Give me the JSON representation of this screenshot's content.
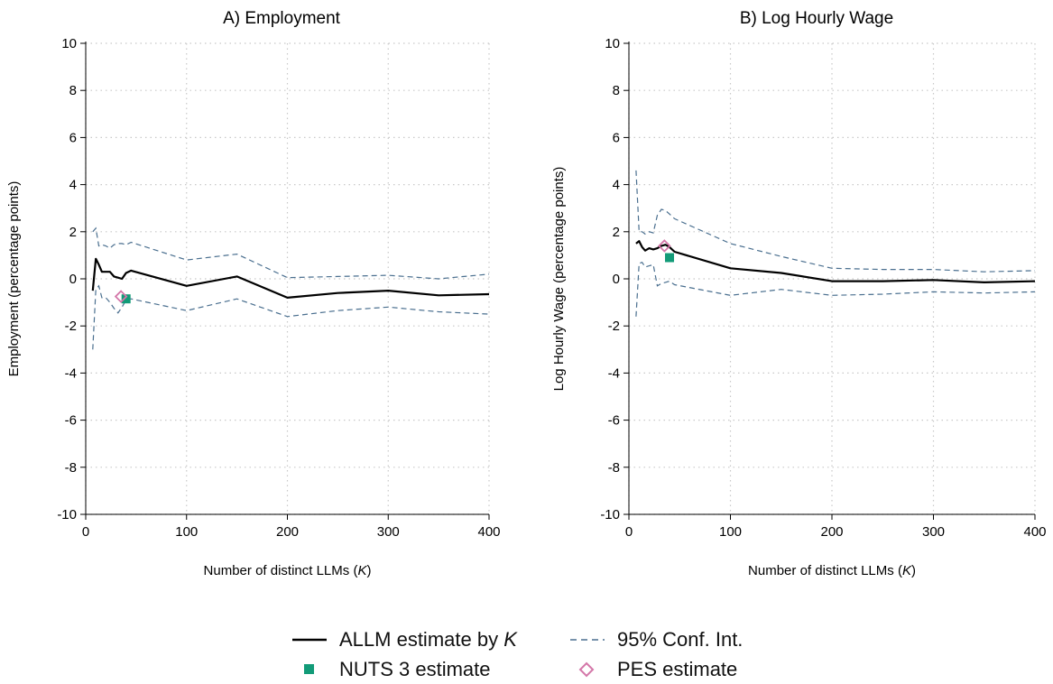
{
  "chart_data": [
    {
      "type": "line",
      "title": "A) Employment",
      "xlabel": "Number of distinct LLMs (",
      "xlabel_italic": "K",
      "xlabel_suffix": ")",
      "ylabel": "Employment (percentage points)",
      "xlim": [
        0,
        400
      ],
      "ylim": [
        -10,
        10
      ],
      "x_ticks": [
        0,
        100,
        200,
        300,
        400
      ],
      "y_ticks": [
        -10,
        -8,
        -6,
        -4,
        -2,
        0,
        2,
        4,
        6,
        8,
        10
      ],
      "grid": true,
      "series": [
        {
          "name": "ALLM estimate by K",
          "style": "solid",
          "x": [
            7,
            10,
            13,
            16,
            20,
            24,
            28,
            32,
            36,
            40,
            45,
            100,
            150,
            200,
            250,
            300,
            350,
            400
          ],
          "y": [
            -0.5,
            0.85,
            0.6,
            0.3,
            0.3,
            0.3,
            0.1,
            0.05,
            0.0,
            0.25,
            0.35,
            -0.3,
            0.1,
            -0.8,
            -0.6,
            -0.5,
            -0.7,
            -0.65
          ]
        },
        {
          "name": "95% Conf. Int. upper",
          "style": "dashed",
          "x": [
            7,
            10,
            13,
            16,
            20,
            24,
            28,
            32,
            36,
            40,
            45,
            100,
            150,
            200,
            250,
            300,
            350,
            400
          ],
          "y": [
            2.0,
            2.15,
            1.4,
            1.45,
            1.4,
            1.3,
            1.45,
            1.5,
            1.5,
            1.45,
            1.55,
            0.8,
            1.05,
            0.05,
            0.1,
            0.15,
            0.0,
            0.2
          ]
        },
        {
          "name": "95% Conf. Int. lower",
          "style": "dashed",
          "x": [
            7,
            10,
            13,
            16,
            20,
            24,
            28,
            32,
            36,
            40,
            45,
            100,
            150,
            200,
            250,
            300,
            350,
            400
          ],
          "y": [
            -3.0,
            -0.45,
            -0.3,
            -0.8,
            -0.8,
            -1.0,
            -1.25,
            -1.45,
            -1.2,
            -0.9,
            -0.85,
            -1.35,
            -0.85,
            -1.6,
            -1.35,
            -1.2,
            -1.4,
            -1.5
          ]
        }
      ],
      "points": [
        {
          "name": "NUTS 3 estimate",
          "x": 40,
          "y": -0.85
        },
        {
          "name": "PES estimate",
          "x": 35,
          "y": -0.75
        }
      ]
    },
    {
      "type": "line",
      "title": "B) Log Hourly Wage",
      "xlabel": "Number of distinct LLMs (",
      "xlabel_italic": "K",
      "xlabel_suffix": ")",
      "ylabel": "Log Hourly Wage (percentage points)",
      "xlim": [
        0,
        400
      ],
      "ylim": [
        -10,
        10
      ],
      "x_ticks": [
        0,
        100,
        200,
        300,
        400
      ],
      "y_ticks": [
        -10,
        -8,
        -6,
        -4,
        -2,
        0,
        2,
        4,
        6,
        8,
        10
      ],
      "grid": true,
      "series": [
        {
          "name": "ALLM estimate by K",
          "style": "solid",
          "x": [
            7,
            10,
            13,
            16,
            20,
            24,
            28,
            32,
            36,
            40,
            45,
            100,
            150,
            200,
            250,
            300,
            350,
            400
          ],
          "y": [
            1.5,
            1.6,
            1.35,
            1.2,
            1.3,
            1.25,
            1.3,
            1.4,
            1.45,
            1.35,
            1.15,
            0.45,
            0.25,
            -0.1,
            -0.1,
            -0.05,
            -0.15,
            -0.1
          ]
        },
        {
          "name": "95% Conf. Int. upper",
          "style": "dashed",
          "x": [
            7,
            10,
            13,
            16,
            20,
            24,
            28,
            32,
            36,
            40,
            45,
            100,
            150,
            200,
            250,
            300,
            350,
            400
          ],
          "y": [
            4.6,
            2.0,
            2.0,
            1.9,
            2.0,
            1.95,
            2.7,
            2.95,
            2.9,
            2.75,
            2.55,
            1.5,
            0.95,
            0.45,
            0.4,
            0.4,
            0.3,
            0.35
          ]
        },
        {
          "name": "95% Conf. Int. lower",
          "style": "dashed",
          "x": [
            7,
            10,
            13,
            16,
            20,
            24,
            28,
            32,
            36,
            40,
            45,
            100,
            150,
            200,
            250,
            300,
            350,
            400
          ],
          "y": [
            -1.6,
            0.65,
            0.7,
            0.5,
            0.55,
            0.6,
            -0.3,
            -0.2,
            -0.15,
            -0.1,
            -0.25,
            -0.7,
            -0.45,
            -0.7,
            -0.65,
            -0.55,
            -0.6,
            -0.55
          ]
        }
      ],
      "points": [
        {
          "name": "NUTS 3 estimate",
          "x": 40,
          "y": 0.9
        },
        {
          "name": "PES estimate",
          "x": 35,
          "y": 1.4
        }
      ]
    }
  ],
  "legend": {
    "allm_label": "ALLM estimate by ",
    "allm_label_italic": "K",
    "ci_label": "95% Conf. Int.",
    "nuts_label": "NUTS 3 estimate",
    "pes_label": "PES estimate"
  },
  "colors": {
    "allm_line": "#000000",
    "ci_line": "#4a6f8f",
    "nuts_marker": "#129b78",
    "pes_marker": "#d477a9",
    "grid": "#c8c8c8",
    "axis": "#000000"
  }
}
